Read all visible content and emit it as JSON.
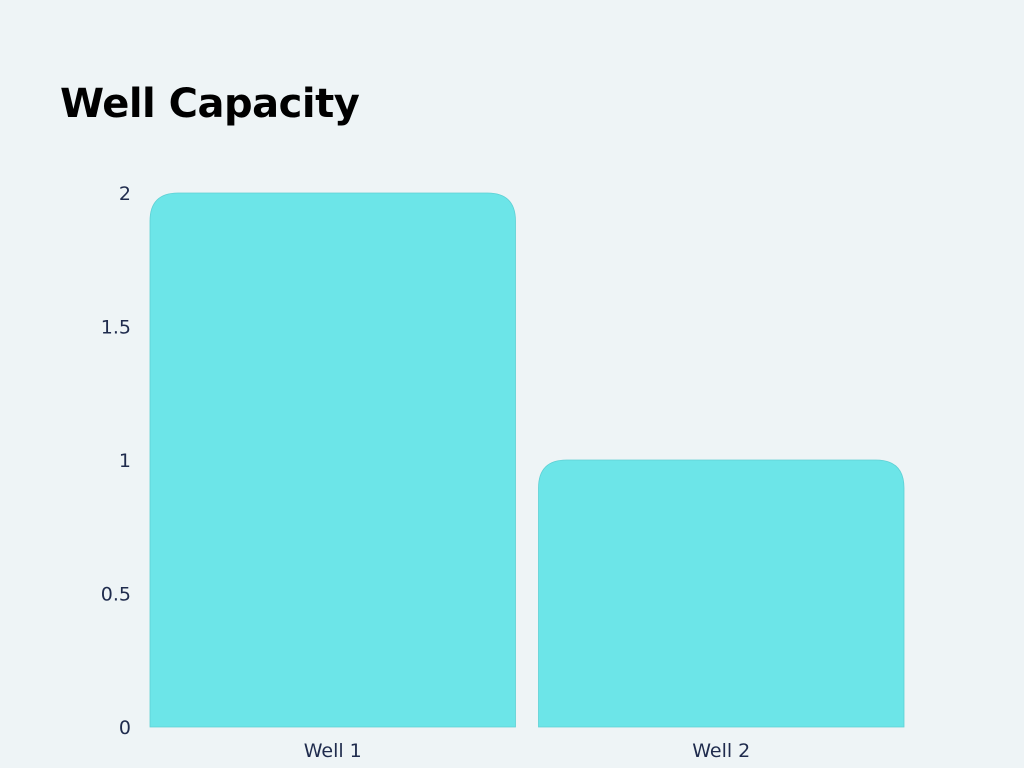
{
  "chart_data": {
    "type": "bar",
    "title": "Well Capacity",
    "xlabel": "",
    "ylabel": "",
    "categories": [
      "Well 1",
      "Well 2"
    ],
    "values": [
      2,
      1
    ],
    "ylim": [
      0,
      2
    ],
    "yticks": [
      "0",
      "0.5",
      "1",
      "1.5",
      "2"
    ],
    "grid": false,
    "legend": "none",
    "colors": {
      "bar": "#6ce5e8",
      "text": "#1f2b4d",
      "background": "#eef4f6"
    }
  }
}
